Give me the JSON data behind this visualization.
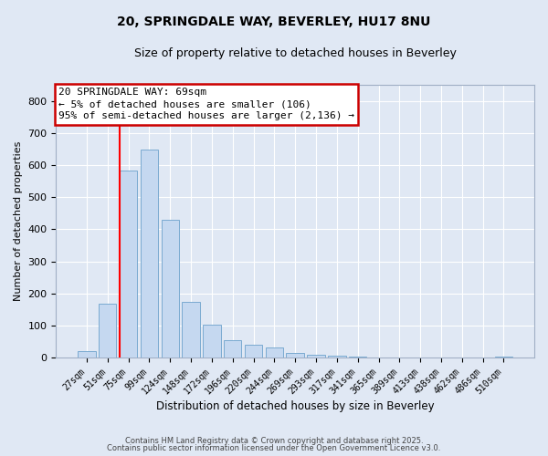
{
  "title1": "20, SPRINGDALE WAY, BEVERLEY, HU17 8NU",
  "title2": "Size of property relative to detached houses in Beverley",
  "xlabel": "Distribution of detached houses by size in Beverley",
  "ylabel": "Number of detached properties",
  "categories": [
    "27sqm",
    "51sqm",
    "75sqm",
    "99sqm",
    "124sqm",
    "148sqm",
    "172sqm",
    "196sqm",
    "220sqm",
    "244sqm",
    "269sqm",
    "293sqm",
    "317sqm",
    "341sqm",
    "365sqm",
    "389sqm",
    "413sqm",
    "438sqm",
    "462sqm",
    "486sqm",
    "510sqm"
  ],
  "values": [
    20,
    168,
    582,
    648,
    430,
    173,
    103,
    55,
    40,
    31,
    15,
    8,
    5,
    3,
    1,
    1,
    1,
    0,
    0,
    0,
    3
  ],
  "bar_color": "#c5d8f0",
  "bar_edge_color": "#7aaad0",
  "background_color": "#e0e8f4",
  "grid_color": "#ffffff",
  "red_line_index": 2,
  "bar_width": 0.85,
  "ylim": [
    0,
    850
  ],
  "yticks": [
    0,
    100,
    200,
    300,
    400,
    500,
    600,
    700,
    800
  ],
  "annotation_line1": "20 SPRINGDALE WAY: 69sqm",
  "annotation_line2": "← 5% of detached houses are smaller (106)",
  "annotation_line3": "95% of semi-detached houses are larger (2,136) →",
  "footnote1": "Contains HM Land Registry data © Crown copyright and database right 2025.",
  "footnote2": "Contains public sector information licensed under the Open Government Licence v3.0."
}
